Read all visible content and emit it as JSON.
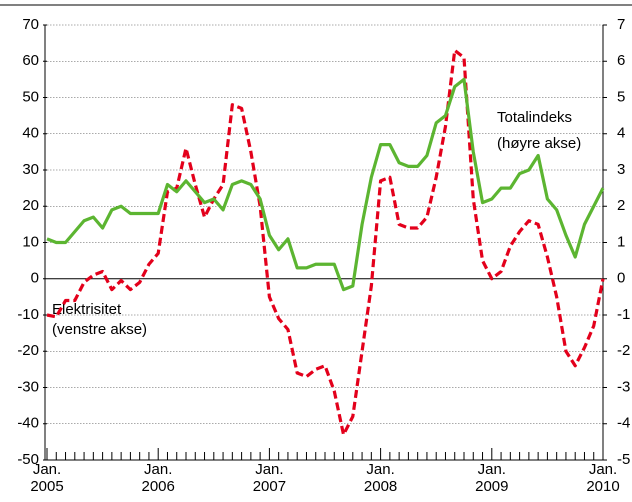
{
  "chart_data": {
    "type": "line",
    "categories": [
      "Jan. 2005",
      null,
      null,
      null,
      null,
      null,
      null,
      null,
      null,
      null,
      null,
      null,
      "Jan. 2006",
      null,
      null,
      null,
      null,
      null,
      null,
      null,
      null,
      null,
      null,
      null,
      "Jan. 2007",
      null,
      null,
      null,
      null,
      null,
      null,
      null,
      null,
      null,
      null,
      null,
      "Jan. 2008",
      null,
      null,
      null,
      null,
      null,
      null,
      null,
      null,
      null,
      null,
      null,
      "Jan. 2009",
      null,
      null,
      null,
      null,
      null,
      null,
      null,
      null,
      null,
      null,
      null,
      "Jan. 2010"
    ],
    "series": [
      {
        "name": "Elektrisitet",
        "color": "#e3001b",
        "dashed": true,
        "axis": "y",
        "values": [
          -10,
          -10.5,
          -6,
          -6,
          -1,
          1,
          2,
          -3,
          -0.5,
          -3,
          -1,
          4,
          7,
          24,
          25,
          36,
          26,
          17,
          22,
          26,
          48,
          47,
          35,
          20,
          -5,
          -11,
          -14,
          -26,
          -27,
          -25,
          -24,
          -31,
          -43,
          -38,
          -20,
          -2,
          27,
          28,
          15,
          14,
          14,
          17,
          28,
          42,
          63,
          61,
          22,
          5,
          0,
          2,
          9,
          13,
          16,
          15,
          6,
          -5,
          -20,
          -24,
          -19,
          -13,
          0
        ]
      },
      {
        "name": "Totalindeks",
        "color": "#5cb531",
        "dashed": false,
        "axis": "y2",
        "values": [
          1.1,
          1.0,
          1.0,
          1.3,
          1.6,
          1.7,
          1.4,
          1.9,
          2.0,
          1.8,
          1.8,
          1.8,
          1.8,
          2.6,
          2.4,
          2.7,
          2.4,
          2.1,
          2.2,
          1.9,
          2.6,
          2.7,
          2.6,
          2.2,
          1.2,
          0.8,
          1.1,
          0.3,
          0.3,
          0.4,
          0.4,
          0.4,
          -0.3,
          -0.2,
          1.5,
          2.8,
          3.7,
          3.7,
          3.2,
          3.1,
          3.1,
          3.4,
          4.3,
          4.5,
          5.3,
          5.5,
          3.5,
          2.1,
          2.2,
          2.5,
          2.5,
          2.9,
          3.0,
          3.4,
          2.2,
          1.9,
          1.2,
          0.6,
          1.5,
          2.0,
          2.5
        ]
      }
    ],
    "annotations": [
      "(venstre akse)",
      "(høyre akse)"
    ],
    "ylim": [
      -50,
      70
    ],
    "yticks": [
      -50,
      -40,
      -30,
      -20,
      -10,
      0,
      10,
      20,
      30,
      40,
      50,
      60,
      70
    ],
    "y2lim": [
      -5,
      7
    ],
    "y2ticks": [
      -5,
      -4,
      -3,
      -2,
      -1,
      0,
      1,
      2,
      3,
      4,
      5,
      6,
      7
    ],
    "grid": true
  }
}
